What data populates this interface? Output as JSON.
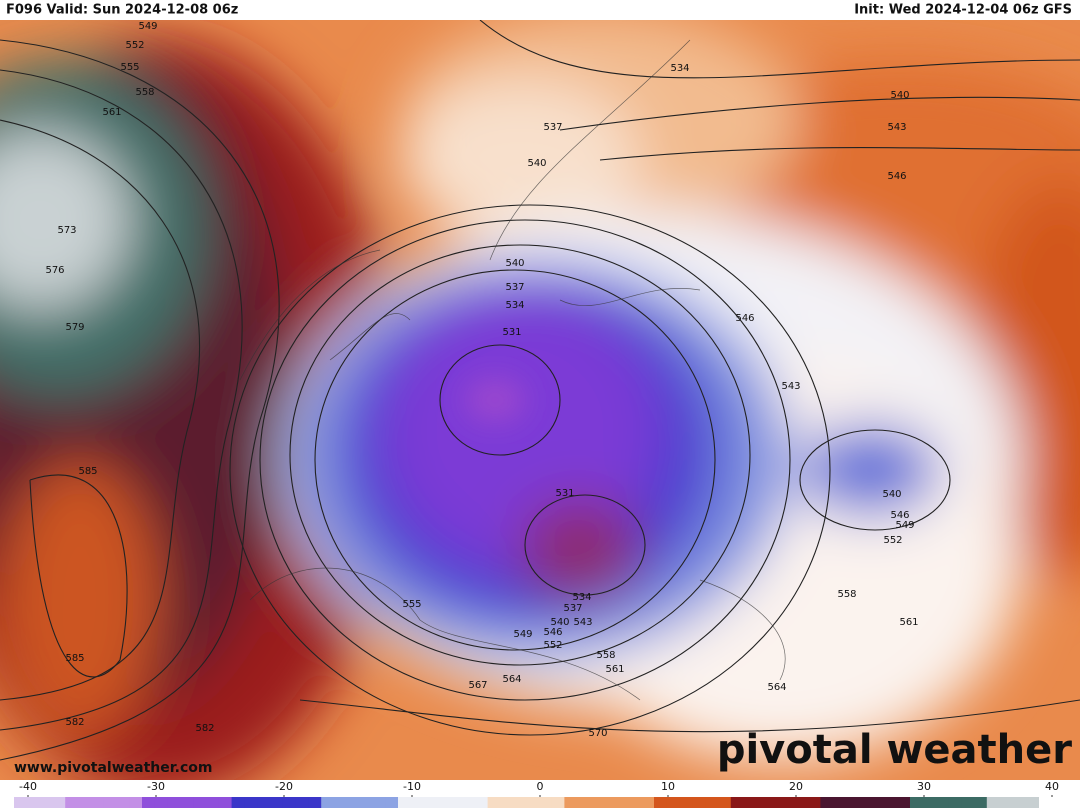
{
  "header": {
    "left": "F096 Valid: Sun 2024-12-08 06z",
    "right": "Init: Wed 2024-12-04 06z GFS"
  },
  "map": {
    "contour_labels": [
      549,
      552,
      555,
      558,
      561,
      573,
      576,
      579,
      585,
      585,
      582,
      582,
      534,
      540,
      543,
      546,
      537,
      540,
      540,
      537,
      534,
      531,
      546,
      543,
      531,
      540,
      546,
      549,
      552,
      555,
      549,
      546,
      552,
      540,
      543,
      537,
      534,
      558,
      561,
      567,
      564,
      564,
      558,
      561,
      570
    ],
    "url": "www.pivotalweather.com",
    "logo": "pivotal weather"
  },
  "colorbar": {
    "lim": [
      -40,
      40
    ],
    "ticks": [
      -40,
      -30,
      -20,
      -10,
      0,
      10,
      20,
      30,
      40
    ]
  }
}
